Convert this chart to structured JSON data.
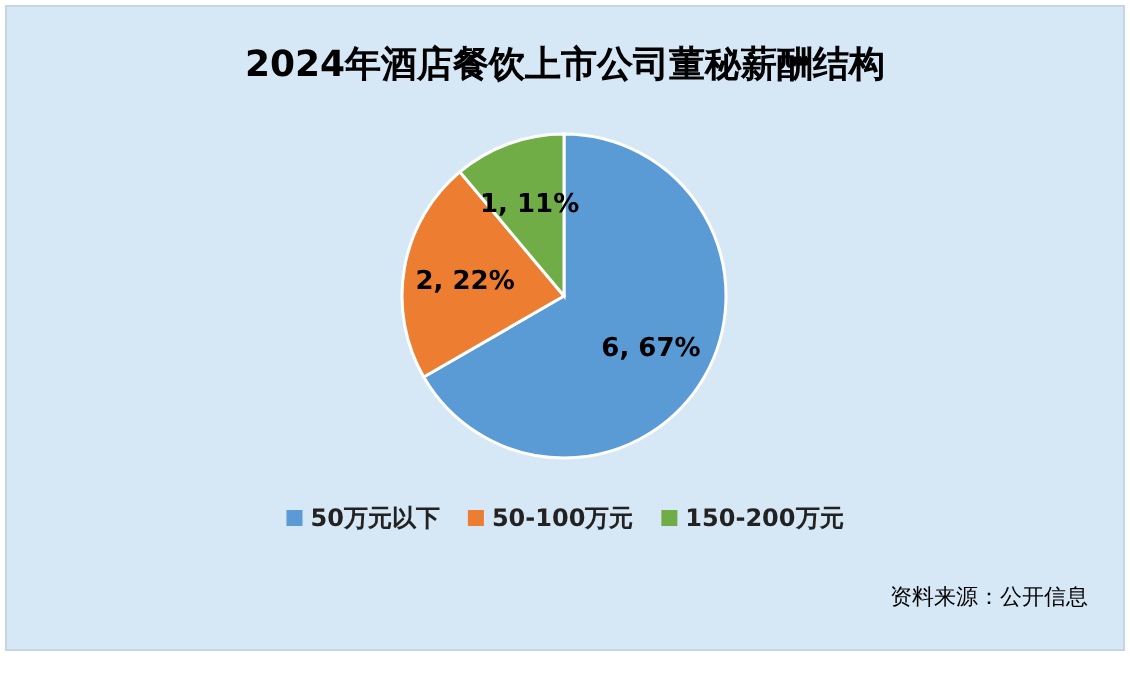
{
  "chart_data": {
    "type": "pie",
    "title": "2024年酒店餐饮上市公司董秘薪酬结构",
    "categories": [
      "50万元以下",
      "50-100万元",
      "150-200万元"
    ],
    "values": [
      6,
      2,
      1
    ],
    "colors": [
      "#5b9bd5",
      "#ed7d31",
      "#70ad47"
    ],
    "value_labels": [
      "6, 67%",
      "2, 22%",
      "1, 11%"
    ],
    "legend": "bottom",
    "annotations": [
      "资料来源：公开信息"
    ]
  }
}
